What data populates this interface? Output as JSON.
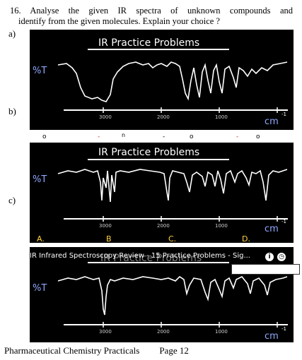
{
  "question": {
    "line1": "16. Analyse the given IR spectra of unknown compounds and",
    "line2": "identify from the given molecules. Explain your choice ?"
  },
  "parts": [
    "a)",
    "b)",
    "c)"
  ],
  "panels": [
    {
      "title": "IR Practice Problems",
      "y_label": "%T",
      "x_ticks": [
        "3000",
        "2000",
        "1000"
      ],
      "x_unit": "cm",
      "x_unit_exp": "-1"
    },
    {
      "title": "IR Practice Problems",
      "y_label": "%T",
      "x_ticks": [
        "3000",
        "2000",
        "1000"
      ],
      "x_unit": "cm",
      "x_unit_exp": "-1"
    },
    {
      "title": "IR Practice Problems",
      "y_label": "%T",
      "x_ticks": [
        "3000",
        "2000",
        "1000"
      ],
      "x_unit": "cm",
      "x_unit_exp": "-1"
    }
  ],
  "options": [
    "A.",
    "B",
    "C.",
    "D."
  ],
  "video": {
    "title": "IR Infrared Spectroscopy Review - 15 Practice Problems - Sig...",
    "info_icon": "info-icon",
    "clock_icon": "clock-icon"
  },
  "footer": {
    "left": "Pharmaceutical Chemistry Practicals",
    "page": "Page 12"
  },
  "colors": {
    "panel_bg": "#000000",
    "axis_label": "#8fa8ff",
    "option_letters": "#ffd23c",
    "spectrum_line": "#ffffff"
  }
}
